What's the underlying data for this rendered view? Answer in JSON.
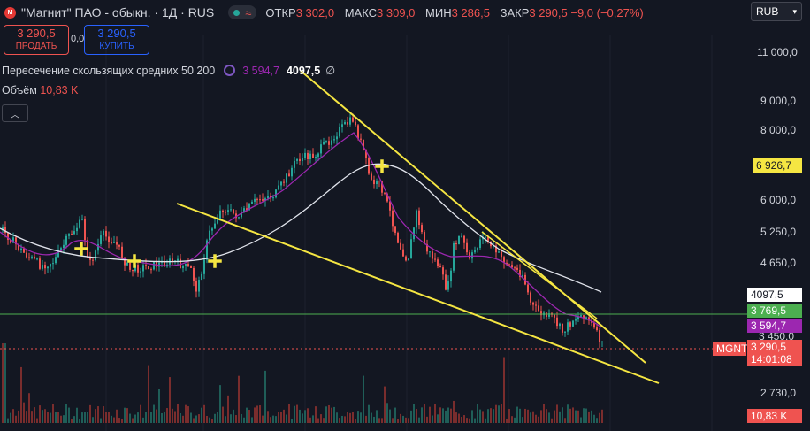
{
  "header": {
    "title": "\"Магнит\" ПАО - обыкн. · 1Д · RUS",
    "logo": "magnit-logo",
    "ohlc": [
      {
        "k": "ОТКР",
        "v": "3 302,0"
      },
      {
        "k": "МАКС",
        "v": "3 309,0"
      },
      {
        "k": "МИН",
        "v": "3 286,5"
      },
      {
        "k": "ЗАКР",
        "v": "3 290,5 −9,0 (−0,27%)"
      }
    ],
    "currency": "RUB"
  },
  "trade": {
    "sell_price": "3 290,5",
    "sell_label": "ПРОДАТЬ",
    "spread": "0,0",
    "buy_price": "3 290,5",
    "buy_label": "КУПИТЬ"
  },
  "indicator": {
    "name": "Пересечение скользящих средних 50 200",
    "ma50": "3 594,7",
    "ma200": "4097,5",
    "symbol": "∅"
  },
  "volume": {
    "label": "Объём",
    "value": "10,83 K"
  },
  "y_axis": [
    "11 000,0",
    "9 000,0",
    "8 000,0",
    "6 000,0",
    "5 250,0",
    "4 650,0",
    "3 450,0",
    "2 730,0"
  ],
  "price_tags": {
    "level_6926": "6 926,7",
    "ma200": "4097,5",
    "level_3769": "3 769,5",
    "ma50": "3 594,7",
    "ticker": "MGNT",
    "last": "3 290,5",
    "countdown": "14:01:08",
    "vol": "10,83 K"
  },
  "colors": {
    "bg": "#131722",
    "up": "#26a69a",
    "down": "#ef5350",
    "ma_fast": "#9c27b0",
    "ma_slow": "#e0e3eb",
    "trend": "#f5e642",
    "level": "#4caf50"
  }
}
